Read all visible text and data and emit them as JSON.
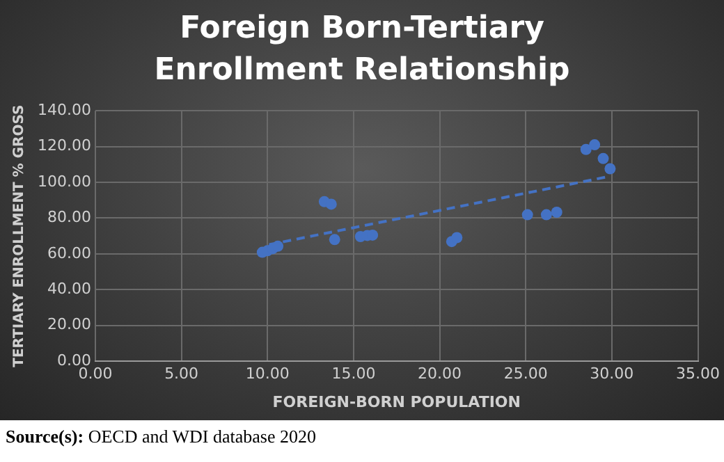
{
  "chart_data": {
    "type": "scatter",
    "title": "Foreign Born-Tertiary Enrollment Relationship",
    "xlabel": "FOREIGN-BORN POPULATION",
    "ylabel": "TERTIARY ENROLLMENT % GROSS",
    "series": [
      {
        "color": "#4472c4",
        "x": [
          9.7,
          10.0,
          10.3,
          10.6,
          13.3,
          13.7,
          13.9,
          15.4,
          15.8,
          16.1,
          20.7,
          21.0,
          25.1,
          26.2,
          26.8,
          28.5,
          29.0,
          29.5,
          29.9
        ],
        "values": [
          60.9,
          61.8,
          62.9,
          64.3,
          89.2,
          87.8,
          68,
          69.7,
          70.3,
          70.5,
          66.9,
          69.1,
          81.9,
          81.9,
          83.3,
          118.4,
          121,
          113.3,
          107.6
        ]
      },
      {
        "type": "line",
        "color": "#4472c4",
        "line_style": "dashed",
        "marker": "none",
        "x": [
          10.1,
          29.9
        ],
        "values": [
          65.2,
          103.4
        ]
      }
    ],
    "marker": "circle",
    "xlim": [
      0,
      35
    ],
    "xticks": [
      {
        "value": 0,
        "label": "0.00"
      },
      {
        "value": 5,
        "label": "5.00"
      },
      {
        "value": 10,
        "label": "10.00"
      },
      {
        "value": 15,
        "label": "15.00"
      },
      {
        "value": 20,
        "label": "20.00"
      },
      {
        "value": 25,
        "label": "25.00"
      },
      {
        "value": 30,
        "label": "30.00"
      },
      {
        "value": 35,
        "label": "35.00"
      }
    ],
    "ylim": [
      0,
      140
    ],
    "yticks": [
      {
        "value": 0,
        "label": "0.00"
      },
      {
        "value": 20,
        "label": "20.00"
      },
      {
        "value": 40,
        "label": "40.00"
      },
      {
        "value": 60,
        "label": "60.00"
      },
      {
        "value": 80,
        "label": "80.00"
      },
      {
        "value": 100,
        "label": "100.00"
      },
      {
        "value": 120,
        "label": "120.00"
      },
      {
        "value": 140,
        "label": "140.00"
      }
    ],
    "grid": true,
    "legend": false,
    "annotations": [
      "Source(s): OECD and WDI database 2020"
    ]
  }
}
